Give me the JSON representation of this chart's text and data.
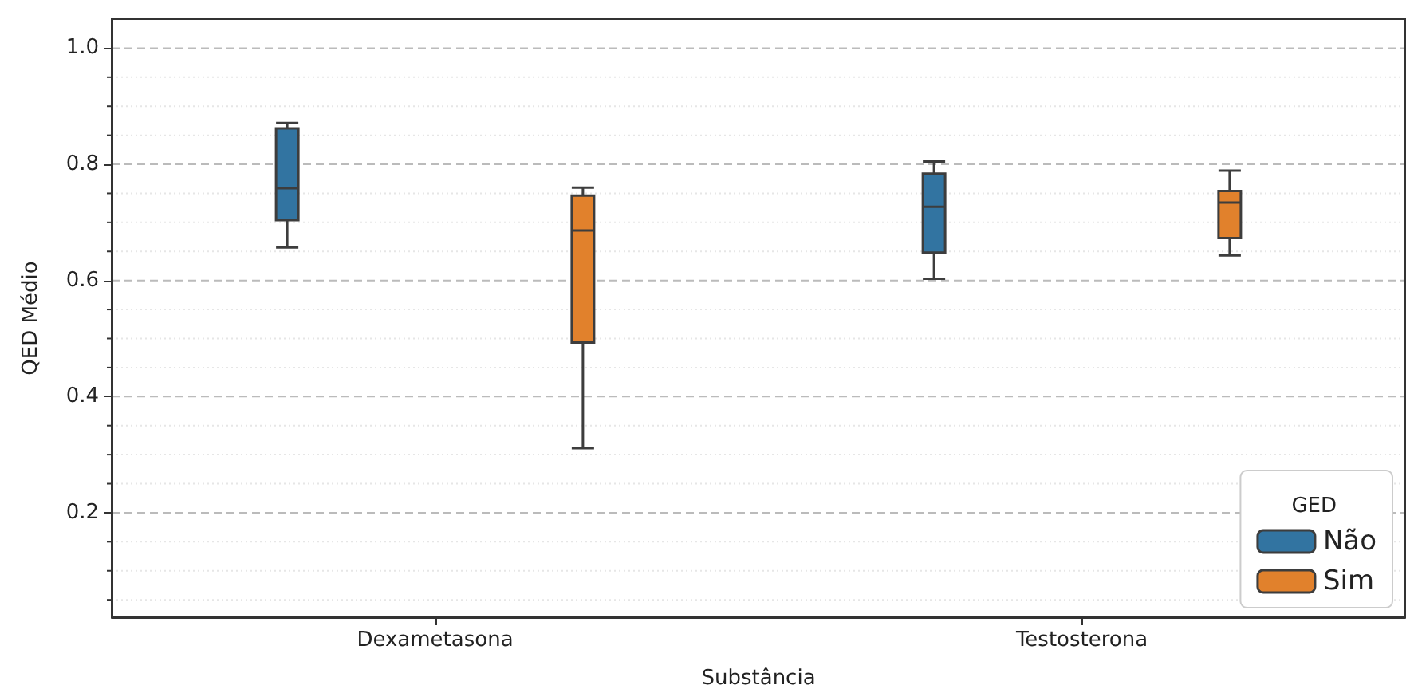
{
  "chart_data": {
    "type": "box",
    "xlabel": "Substância",
    "ylabel": "QED Médio",
    "legend_title": "GED",
    "categories": [
      "Dexametasona",
      "Testosterona"
    ],
    "series": [
      {
        "name": "Não",
        "color": "#3274a1",
        "boxes": [
          {
            "low": 0.657,
            "q1": 0.704,
            "median": 0.759,
            "q3": 0.862,
            "high": 0.871
          },
          {
            "low": 0.603,
            "q1": 0.648,
            "median": 0.727,
            "q3": 0.784,
            "high": 0.805
          }
        ]
      },
      {
        "name": "Sim",
        "color": "#e1812c",
        "boxes": [
          {
            "low": 0.311,
            "q1": 0.493,
            "median": 0.686,
            "q3": 0.746,
            "high": 0.76
          },
          {
            "low": 0.643,
            "q1": 0.673,
            "median": 0.734,
            "q3": 0.754,
            "high": 0.789
          }
        ]
      }
    ],
    "ylim": [
      0.02,
      1.05
    ],
    "yticks": [
      {
        "value": 0.05,
        "label": null
      },
      {
        "value": 0.1,
        "label": null
      },
      {
        "value": 0.15,
        "label": null
      },
      {
        "value": 0.2,
        "label": "0.2"
      },
      {
        "value": 0.25,
        "label": null
      },
      {
        "value": 0.3,
        "label": null
      },
      {
        "value": 0.35,
        "label": null
      },
      {
        "value": 0.4,
        "label": "0.4"
      },
      {
        "value": 0.45,
        "label": null
      },
      {
        "value": 0.5,
        "label": null
      },
      {
        "value": 0.55,
        "label": null
      },
      {
        "value": 0.6,
        "label": "0.6"
      },
      {
        "value": 0.65,
        "label": null
      },
      {
        "value": 0.7,
        "label": null
      },
      {
        "value": 0.75,
        "label": null
      },
      {
        "value": 0.8,
        "label": "0.8"
      },
      {
        "value": 0.85,
        "label": null
      },
      {
        "value": 0.9,
        "label": null
      },
      {
        "value": 0.95,
        "label": null
      },
      {
        "value": 1.0,
        "label": "1.0"
      }
    ],
    "grid": "y",
    "legend": "bottom right"
  }
}
